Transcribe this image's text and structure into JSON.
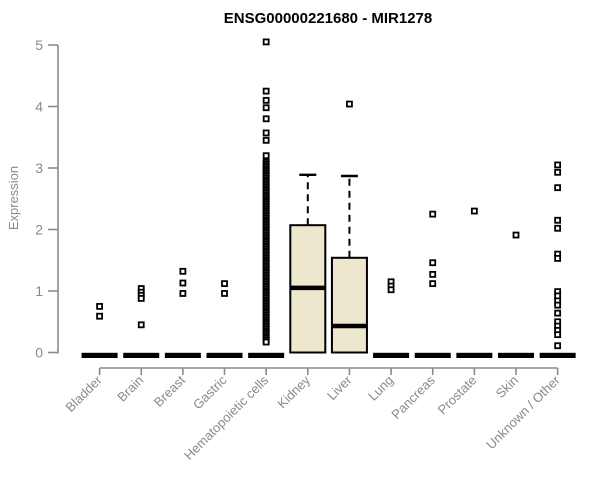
{
  "chart_data": {
    "type": "boxplot",
    "title": "ENSG00000221680 - MIR1278",
    "ylabel": "Expression",
    "xlabel": "",
    "ylim": [
      0,
      5
    ],
    "yticks": [
      "0",
      "1",
      "2",
      "3",
      "4",
      "5"
    ],
    "grid": false,
    "legend": false,
    "colors": {
      "box_fill": "#ede7cd",
      "box_border": "#000000",
      "axis": "#8a8a8a",
      "tick_text": "#8a8a8a",
      "title_text": "#000000",
      "point": "#000000"
    },
    "categories": [
      "Bladder",
      "Brain",
      "Breast",
      "Gastric",
      "Hematopoietic cells",
      "Kidney",
      "Liver",
      "Lung",
      "Pancreas",
      "Prostate",
      "Skin",
      "Unknown / Other"
    ],
    "boxes": [
      {
        "category": "Bladder",
        "q1": 0,
        "median": 0,
        "q3": 0,
        "whisker_low": 0,
        "whisker_high": 0,
        "outliers": [
          0.75,
          0.59
        ]
      },
      {
        "category": "Brain",
        "q1": 0,
        "median": 0,
        "q3": 0,
        "whisker_low": 0,
        "whisker_high": 0,
        "outliers": [
          1.04,
          0.98,
          0.93,
          0.88,
          0.45
        ]
      },
      {
        "category": "Breast",
        "q1": 0,
        "median": 0,
        "q3": 0,
        "whisker_low": 0,
        "whisker_high": 0,
        "outliers": [
          1.32,
          1.13,
          0.96
        ]
      },
      {
        "category": "Gastric",
        "q1": 0,
        "median": 0,
        "q3": 0,
        "whisker_low": 0,
        "whisker_high": 0,
        "outliers": [
          1.12,
          0.96
        ]
      },
      {
        "category": "Hematopoietic cells",
        "q1": 0,
        "median": 0,
        "q3": 0,
        "whisker_low": 0,
        "whisker_high": 0,
        "outliers": [
          5.05,
          4.25,
          4.1,
          3.98,
          3.8,
          3.57,
          3.45,
          3.2
        ],
        "dense_band": {
          "min": 0.17,
          "max": 3.1,
          "count": 100
        }
      },
      {
        "category": "Kidney",
        "q1": 0,
        "median": 1.05,
        "q3": 2.07,
        "whisker_low": 0,
        "whisker_high": 2.89,
        "outliers": []
      },
      {
        "category": "Liver",
        "q1": 0,
        "median": 0.43,
        "q3": 1.54,
        "whisker_low": 0,
        "whisker_high": 2.87,
        "outliers": [
          4.04
        ]
      },
      {
        "category": "Lung",
        "q1": 0,
        "median": 0,
        "q3": 0,
        "whisker_low": 0,
        "whisker_high": 0,
        "outliers": [
          1.15,
          1.08,
          1.02
        ]
      },
      {
        "category": "Pancreas",
        "q1": 0,
        "median": 0,
        "q3": 0,
        "whisker_low": 0,
        "whisker_high": 0,
        "outliers": [
          2.25,
          1.46,
          1.27,
          1.12
        ]
      },
      {
        "category": "Prostate",
        "q1": 0,
        "median": 0,
        "q3": 0,
        "whisker_low": 0,
        "whisker_high": 0,
        "outliers": [
          2.3
        ]
      },
      {
        "category": "Skin",
        "q1": 0,
        "median": 0,
        "q3": 0,
        "whisker_low": 0,
        "whisker_high": 0,
        "outliers": [
          1.91
        ]
      },
      {
        "category": "Unknown / Other",
        "q1": 0,
        "median": 0,
        "q3": 0,
        "whisker_low": 0,
        "whisker_high": 0,
        "outliers": [
          3.05,
          2.93,
          2.68,
          2.15,
          2.02,
          1.6,
          1.53,
          0.99,
          0.92,
          0.84,
          0.77,
          0.64,
          0.5,
          0.43,
          0.36,
          0.29,
          0.11
        ]
      }
    ]
  }
}
